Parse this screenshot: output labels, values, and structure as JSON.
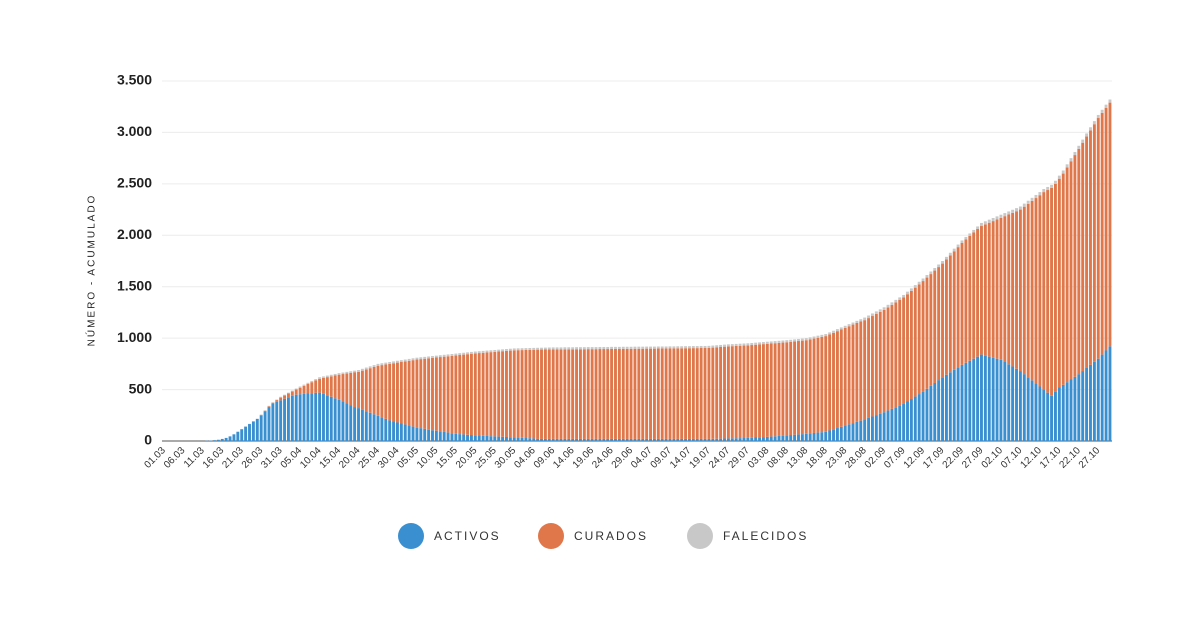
{
  "chart_data": {
    "type": "stacked_bar",
    "ylabel": "NÚMERO - ACUMULADO",
    "ylim": [
      0,
      3500
    ],
    "yticks": [
      0,
      500,
      {
        "value": 1000,
        "label": "1.000"
      },
      {
        "value": 1500,
        "label": "1.500"
      },
      {
        "value": 2000,
        "label": "2.000"
      },
      {
        "value": 2500,
        "label": "2.500"
      },
      {
        "value": 3000,
        "label": "3.000"
      },
      {
        "value": 3500,
        "label": "3.500"
      }
    ],
    "grid": true,
    "legend": "bottom",
    "categories": [
      "01.03",
      null,
      null,
      null,
      null,
      "06.03",
      null,
      null,
      null,
      null,
      "11.03",
      null,
      null,
      null,
      null,
      "16.03",
      null,
      null,
      null,
      null,
      "21.03",
      null,
      null,
      null,
      null,
      "26.03",
      null,
      null,
      null,
      null,
      "31.03",
      null,
      null,
      null,
      null,
      "05.04",
      null,
      null,
      null,
      null,
      "10.04",
      null,
      null,
      null,
      null,
      "15.04",
      null,
      null,
      null,
      null,
      "20.04",
      null,
      null,
      null,
      null,
      "25.04",
      null,
      null,
      null,
      null,
      "30.04",
      null,
      null,
      null,
      null,
      "05.05",
      null,
      null,
      null,
      null,
      "10.05",
      null,
      null,
      null,
      null,
      "15.05",
      null,
      null,
      null,
      null,
      "20.05",
      null,
      null,
      null,
      null,
      "25.05",
      null,
      null,
      null,
      null,
      "30.05",
      null,
      null,
      null,
      null,
      "04.06",
      null,
      null,
      null,
      null,
      "09.06",
      null,
      null,
      null,
      null,
      "14.06",
      null,
      null,
      null,
      null,
      "19.06",
      null,
      null,
      null,
      null,
      "24.06",
      null,
      null,
      null,
      null,
      "29.06",
      null,
      null,
      null,
      null,
      "04.07",
      null,
      null,
      null,
      null,
      "09.07",
      null,
      null,
      null,
      null,
      "14.07",
      null,
      null,
      null,
      null,
      "19.07",
      null,
      null,
      null,
      null,
      "24.07",
      null,
      null,
      null,
      null,
      "29.07",
      null,
      null,
      null,
      null,
      "03.08",
      null,
      null,
      null,
      null,
      "08.08",
      null,
      null,
      null,
      null,
      "13.08",
      null,
      null,
      null,
      null,
      "18.08",
      null,
      null,
      null,
      null,
      "23.08",
      null,
      null,
      null,
      null,
      "28.08",
      null,
      null,
      null,
      null,
      "02.09",
      null,
      null,
      null,
      null,
      "07.09",
      null,
      null,
      null,
      null,
      "12.09",
      null,
      null,
      null,
      null,
      "17.09",
      null,
      null,
      null,
      null,
      "22.09",
      null,
      null,
      null,
      null,
      "27.09",
      null,
      null,
      null,
      null,
      "02.10",
      null,
      null,
      null,
      null,
      "07.10",
      null,
      null,
      null,
      null,
      "12.10",
      null,
      null,
      null,
      null,
      "17.10",
      null,
      null,
      null,
      null,
      "22.10",
      null,
      null,
      null,
      null,
      "27.10",
      null,
      null,
      null
    ],
    "series": [
      {
        "name": "ACTIVOS",
        "color": "#3a8fd0",
        "values": [
          0,
          0,
          0,
          0,
          0,
          0,
          0,
          0,
          0,
          0,
          0,
          3,
          5,
          8,
          12,
          20,
          30,
          45,
          65,
          90,
          115,
          140,
          165,
          190,
          215,
          250,
          290,
          330,
          360,
          380,
          395,
          410,
          425,
          440,
          450,
          455,
          460,
          462,
          465,
          468,
          470,
          460,
          445,
          430,
          415,
          400,
          385,
          365,
          345,
          330,
          320,
          305,
          290,
          275,
          260,
          245,
          230,
          215,
          200,
          190,
          180,
          170,
          160,
          150,
          140,
          130,
          125,
          118,
          110,
          105,
          100,
          95,
          88,
          82,
          76,
          70,
          67,
          64,
          60,
          58,
          55,
          53,
          51,
          49,
          47,
          45,
          43,
          41,
          39,
          37,
          35,
          33,
          31,
          29,
          27,
          25,
          20,
          20,
          20,
          20,
          20,
          20,
          20,
          20,
          20,
          20,
          20,
          20,
          20,
          20,
          20,
          20,
          20,
          20,
          20,
          20,
          20,
          20,
          20,
          20,
          20,
          20,
          20,
          20,
          20,
          20,
          20,
          20,
          20,
          20,
          20,
          20,
          20,
          20,
          20,
          20,
          20,
          20,
          20,
          20,
          20,
          21,
          22,
          23,
          24,
          25,
          26,
          27,
          28,
          29,
          30,
          32,
          34,
          36,
          38,
          40,
          43,
          46,
          49,
          52,
          55,
          58,
          61,
          64,
          67,
          70,
          74,
          78,
          82,
          86,
          90,
          102,
          114,
          126,
          138,
          150,
          162,
          174,
          186,
          198,
          210,
          224,
          238,
          252,
          266,
          280,
          296,
          312,
          328,
          344,
          360,
          384,
          408,
          432,
          456,
          480,
          508,
          536,
          564,
          592,
          620,
          644,
          668,
          692,
          716,
          740,
          760,
          780,
          800,
          820,
          840,
          830,
          820,
          810,
          800,
          790,
          768,
          746,
          724,
          702,
          680,
          650,
          620,
          590,
          560,
          530,
          500,
          470,
          440,
          480,
          520,
          546,
          572,
          598,
          624,
          650,
          680,
          710,
          740,
          770,
          800,
          840,
          880,
          920
        ]
      },
      {
        "name": "CURADOS",
        "color": "#e0774a",
        "values": [
          0,
          0,
          0,
          0,
          0,
          0,
          0,
          0,
          0,
          0,
          0,
          0,
          0,
          0,
          0,
          0,
          0,
          0,
          0,
          0,
          0,
          0,
          0,
          0,
          0,
          2,
          4,
          7,
          12,
          18,
          27,
          32,
          37,
          42,
          52,
          63,
          76,
          92,
          107,
          122,
          135,
          153,
          176,
          199,
          222,
          245,
          266,
          292,
          318,
          339,
          352,
          379,
          406,
          433,
          460,
          487,
          508,
          529,
          550,
          566,
          582,
          598,
          614,
          630,
          646,
          662,
          671,
          682,
          694,
          703,
          712,
          721,
          732,
          742,
          752,
          762,
          769,
          776,
          784,
          790,
          797,
          802,
          807,
          812,
          817,
          822,
          827,
          832,
          837,
          842,
          847,
          850,
          853,
          856,
          859,
          862,
          868,
          869,
          870,
          871,
          870,
          870,
          870,
          871,
          871,
          871,
          872,
          872,
          872,
          873,
          873,
          873,
          874,
          874,
          874,
          875,
          875,
          875,
          876,
          876,
          876,
          877,
          877,
          877,
          878,
          878,
          878,
          879,
          879,
          879,
          880,
          880,
          881,
          881,
          882,
          882,
          883,
          883,
          884,
          884,
          885,
          887,
          889,
          891,
          893,
          895,
          896,
          897,
          898,
          899,
          900,
          901,
          902,
          903,
          904,
          905,
          905,
          905,
          905,
          905,
          905,
          906,
          907,
          908,
          909,
          910,
          914,
          918,
          922,
          926,
          930,
          934,
          938,
          942,
          946,
          950,
          954,
          958,
          962,
          966,
          965,
          971,
          977,
          983,
          989,
          995,
          1003,
          1011,
          1019,
          1027,
          1035,
          1043,
          1051,
          1059,
          1067,
          1075,
          1081,
          1087,
          1093,
          1099,
          1105,
          1121,
          1137,
          1153,
          1169,
          1185,
          1199,
          1213,
          1227,
          1241,
          1250,
          1276,
          1302,
          1328,
          1354,
          1380,
          1418,
          1456,
          1494,
          1532,
          1570,
          1628,
          1686,
          1744,
          1802,
          1860,
          1920,
          1970,
          2020,
          2020,
          2030,
          2054,
          2088,
          2122,
          2156,
          2190,
          2220,
          2250,
          2280,
          2310,
          2340,
          2350,
          2360,
          2370
        ]
      },
      {
        "name": "FALECIDOS",
        "color": "#c8c8c8",
        "values": [
          0,
          0,
          0,
          0,
          0,
          0,
          0,
          0,
          0,
          0,
          0,
          0,
          0,
          0,
          0,
          0,
          0,
          0,
          0,
          0,
          2,
          2,
          2,
          2,
          2,
          5,
          5,
          5,
          5,
          5,
          8,
          8,
          8,
          8,
          8,
          12,
          12,
          12,
          12,
          12,
          15,
          15,
          15,
          15,
          15,
          15,
          15,
          15,
          15,
          15,
          18,
          18,
          18,
          18,
          18,
          18,
          18,
          18,
          18,
          18,
          18,
          18,
          18,
          18,
          18,
          18,
          18,
          18,
          18,
          18,
          18,
          18,
          18,
          18,
          18,
          18,
          18,
          18,
          18,
          18,
          18,
          18,
          18,
          18,
          18,
          18,
          18,
          18,
          18,
          18,
          18,
          18,
          18,
          18,
          18,
          18,
          18,
          18,
          18,
          18,
          20,
          20,
          20,
          20,
          20,
          20,
          20,
          20,
          20,
          20,
          20,
          20,
          20,
          20,
          20,
          20,
          20,
          20,
          20,
          20,
          20,
          20,
          20,
          20,
          20,
          20,
          20,
          20,
          20,
          20,
          20,
          20,
          20,
          20,
          20,
          20,
          20,
          20,
          20,
          20,
          20,
          20,
          20,
          20,
          20,
          20,
          20,
          20,
          20,
          20,
          20,
          20,
          20,
          20,
          20,
          20,
          20,
          20,
          20,
          20,
          20,
          20,
          20,
          20,
          20,
          20,
          20,
          20,
          20,
          20,
          20,
          20,
          20,
          20,
          20,
          20,
          20,
          20,
          20,
          20,
          25,
          25,
          25,
          25,
          25,
          25,
          25,
          25,
          25,
          25,
          25,
          25,
          25,
          25,
          25,
          25,
          25,
          25,
          25,
          25,
          25,
          25,
          25,
          25,
          25,
          25,
          25,
          25,
          25,
          25,
          30,
          30,
          30,
          30,
          30,
          30,
          30,
          30,
          30,
          30,
          30,
          30,
          30,
          30,
          30,
          30,
          30,
          30,
          30,
          30,
          30,
          30,
          30,
          30,
          30,
          30,
          30,
          30,
          30,
          30,
          30,
          30,
          30,
          30
        ]
      }
    ]
  }
}
